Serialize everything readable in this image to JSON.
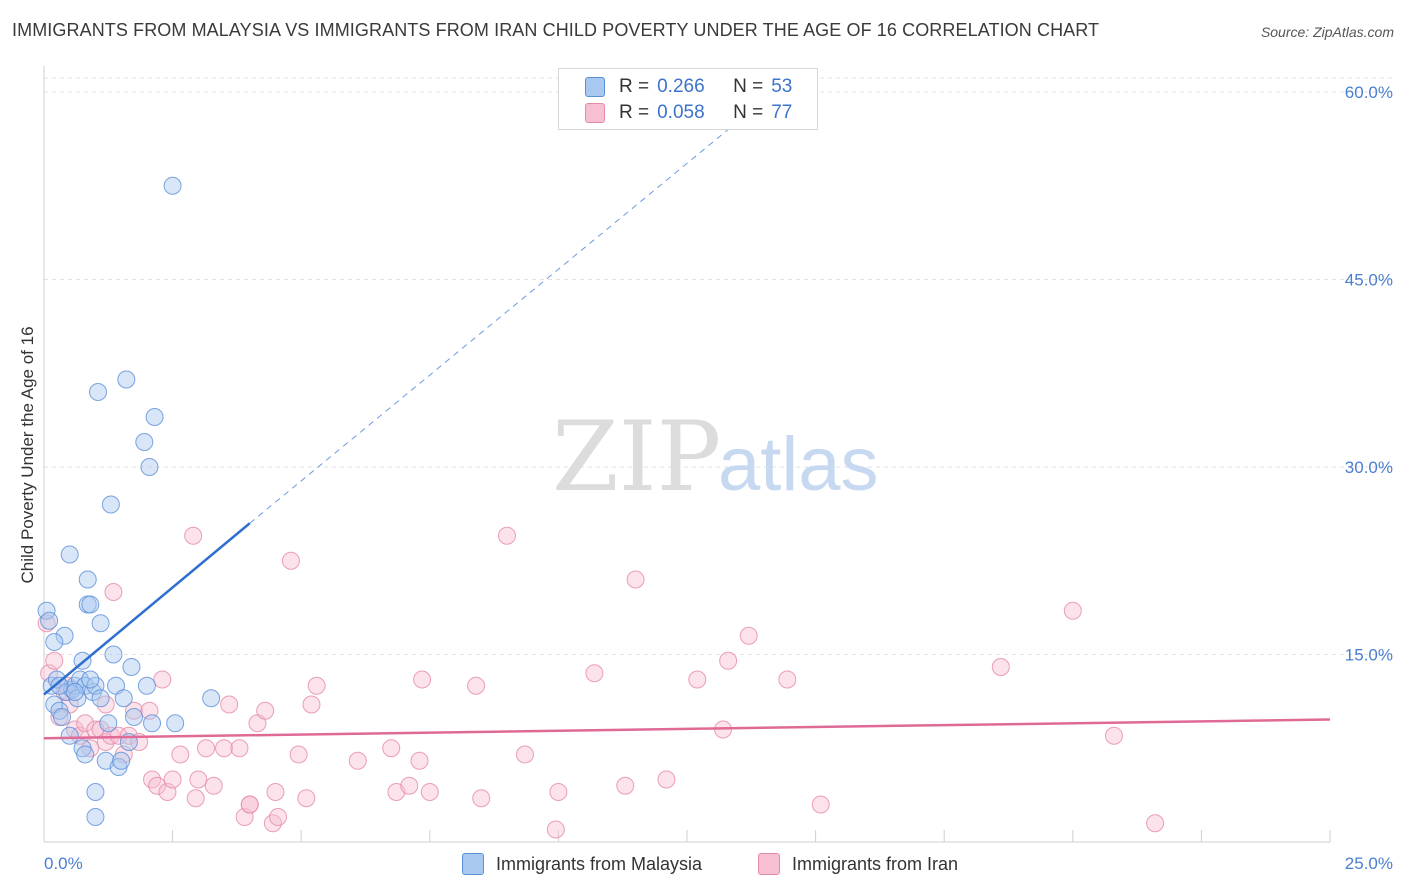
{
  "title": "IMMIGRANTS FROM MALAYSIA VS IMMIGRANTS FROM IRAN CHILD POVERTY UNDER THE AGE OF 16 CORRELATION CHART",
  "source": "Source: ZipAtlas.com",
  "watermark": {
    "zip": "ZIP",
    "atlas": "atlas"
  },
  "legend": {
    "rows": [
      {
        "r_label": "R =",
        "r_value": "0.266",
        "n_label": "N =",
        "n_value": "53"
      },
      {
        "r_label": "R =",
        "r_value": "0.058",
        "n_label": "N =",
        "n_value": "77"
      }
    ]
  },
  "bottom_legend": [
    "Immigrants from Malaysia",
    "Immigrants from Iran"
  ],
  "colors": {
    "malaysia_fill": "#a9c8f0",
    "malaysia_stroke": "#5b8fd8",
    "malaysia_line": "#2f6fd0",
    "iran_fill": "#f7bfd2",
    "iran_stroke": "#e58aa8",
    "iran_line": "#e06a96",
    "grid": "#e2e2e2",
    "axis_text": "#4a7fd0"
  },
  "chart_data": {
    "type": "scatter",
    "title": "IMMIGRANTS FROM MALAYSIA VS IMMIGRANTS FROM IRAN CHILD POVERTY UNDER THE AGE OF 16 CORRELATION CHART",
    "xlabel": "",
    "ylabel": "Child Poverty Under the Age of 16",
    "xlim": [
      0,
      25
    ],
    "ylim": [
      0,
      60
    ],
    "x_tick_labels": [
      "0.0%",
      "25.0%"
    ],
    "y_ticks": [
      15,
      30,
      45,
      60
    ],
    "y_tick_labels": [
      "15.0%",
      "30.0%",
      "45.0%",
      "60.0%"
    ],
    "series": [
      {
        "name": "Immigrants from Malaysia",
        "points": [
          [
            0.05,
            18.5
          ],
          [
            0.1,
            17.7
          ],
          [
            0.15,
            12.5
          ],
          [
            0.2,
            11.0
          ],
          [
            0.25,
            13.0
          ],
          [
            0.3,
            10.5
          ],
          [
            0.4,
            16.5
          ],
          [
            0.45,
            12.0
          ],
          [
            0.5,
            8.5
          ],
          [
            0.5,
            23.0
          ],
          [
            0.55,
            12.2
          ],
          [
            0.6,
            12.5
          ],
          [
            0.65,
            11.5
          ],
          [
            0.7,
            13.0
          ],
          [
            0.75,
            14.5
          ],
          [
            0.75,
            7.5
          ],
          [
            0.8,
            7.0
          ],
          [
            0.8,
            12.5
          ],
          [
            0.85,
            21.0
          ],
          [
            0.85,
            19.0
          ],
          [
            0.9,
            19.0
          ],
          [
            0.95,
            12.0
          ],
          [
            1.0,
            12.5
          ],
          [
            1.0,
            4.0
          ],
          [
            1.0,
            2.0
          ],
          [
            1.05,
            36.0
          ],
          [
            1.1,
            17.5
          ],
          [
            1.1,
            11.5
          ],
          [
            1.2,
            6.5
          ],
          [
            1.25,
            9.5
          ],
          [
            1.3,
            27.0
          ],
          [
            1.35,
            15.0
          ],
          [
            1.4,
            12.5
          ],
          [
            1.45,
            6.0
          ],
          [
            1.5,
            6.5
          ],
          [
            1.55,
            11.5
          ],
          [
            1.6,
            37.0
          ],
          [
            1.65,
            8.0
          ],
          [
            1.7,
            14.0
          ],
          [
            1.75,
            10.0
          ],
          [
            1.95,
            32.0
          ],
          [
            2.0,
            12.5
          ],
          [
            2.05,
            30.0
          ],
          [
            2.1,
            9.5
          ],
          [
            2.15,
            34.0
          ],
          [
            2.5,
            52.5
          ],
          [
            2.55,
            9.5
          ],
          [
            3.25,
            11.5
          ],
          [
            0.2,
            16.0
          ],
          [
            0.3,
            12.5
          ],
          [
            0.6,
            12.0
          ],
          [
            0.9,
            13.0
          ],
          [
            0.35,
            10.0
          ]
        ]
      },
      {
        "name": "Immigrants from Iran",
        "points": [
          [
            0.05,
            17.5
          ],
          [
            0.1,
            13.5
          ],
          [
            0.2,
            14.5
          ],
          [
            0.3,
            10.0
          ],
          [
            0.45,
            12.5
          ],
          [
            0.5,
            11.0
          ],
          [
            0.6,
            9.0
          ],
          [
            0.7,
            8.5
          ],
          [
            0.8,
            9.5
          ],
          [
            0.9,
            7.5
          ],
          [
            1.0,
            9.0
          ],
          [
            1.1,
            9.0
          ],
          [
            1.2,
            8.0
          ],
          [
            1.3,
            8.5
          ],
          [
            1.35,
            20.0
          ],
          [
            1.45,
            8.5
          ],
          [
            1.55,
            7.0
          ],
          [
            1.65,
            8.5
          ],
          [
            1.75,
            10.5
          ],
          [
            1.85,
            8.0
          ],
          [
            2.05,
            10.5
          ],
          [
            2.1,
            5.0
          ],
          [
            2.2,
            4.5
          ],
          [
            2.3,
            13.0
          ],
          [
            2.4,
            4.0
          ],
          [
            2.5,
            5.0
          ],
          [
            2.65,
            7.0
          ],
          [
            2.9,
            24.5
          ],
          [
            2.95,
            3.5
          ],
          [
            3.0,
            5.0
          ],
          [
            3.15,
            7.5
          ],
          [
            3.3,
            4.5
          ],
          [
            3.5,
            7.5
          ],
          [
            3.6,
            11.0
          ],
          [
            3.8,
            7.5
          ],
          [
            3.9,
            2.0
          ],
          [
            4.0,
            3.0
          ],
          [
            4.15,
            9.5
          ],
          [
            4.3,
            10.5
          ],
          [
            4.45,
            1.5
          ],
          [
            4.5,
            4.0
          ],
          [
            4.55,
            2.0
          ],
          [
            4.8,
            22.5
          ],
          [
            4.95,
            7.0
          ],
          [
            5.1,
            3.5
          ],
          [
            5.2,
            11.0
          ],
          [
            5.3,
            12.5
          ],
          [
            6.1,
            6.5
          ],
          [
            6.75,
            7.5
          ],
          [
            6.85,
            4.0
          ],
          [
            7.1,
            4.5
          ],
          [
            7.3,
            6.5
          ],
          [
            7.35,
            13.0
          ],
          [
            7.5,
            4.0
          ],
          [
            8.4,
            12.5
          ],
          [
            8.5,
            3.5
          ],
          [
            9.0,
            24.5
          ],
          [
            9.35,
            7.0
          ],
          [
            9.95,
            1.0
          ],
          [
            10.0,
            4.0
          ],
          [
            10.7,
            13.5
          ],
          [
            11.3,
            4.5
          ],
          [
            11.5,
            21.0
          ],
          [
            12.1,
            5.0
          ],
          [
            12.7,
            13.0
          ],
          [
            13.2,
            9.0
          ],
          [
            13.3,
            14.5
          ],
          [
            13.7,
            16.5
          ],
          [
            14.45,
            13.0
          ],
          [
            15.1,
            3.0
          ],
          [
            18.6,
            14.0
          ],
          [
            20.0,
            18.5
          ],
          [
            20.8,
            8.5
          ],
          [
            21.6,
            1.5
          ],
          [
            4.0,
            3.0
          ],
          [
            1.2,
            11.0
          ],
          [
            0.4,
            12.0
          ]
        ]
      }
    ],
    "trend_lines": [
      {
        "series": "Immigrants from Malaysia",
        "x_start": 0,
        "y_start": 11.8,
        "x_solid_end": 4.0,
        "y_solid_end": 25.5,
        "x_dash_end": 13.3,
        "y_dash_end": 57.0
      },
      {
        "series": "Immigrants from Iran",
        "x_start": 0,
        "y_start": 8.3,
        "x_end": 25,
        "y_end": 9.8
      }
    ]
  }
}
